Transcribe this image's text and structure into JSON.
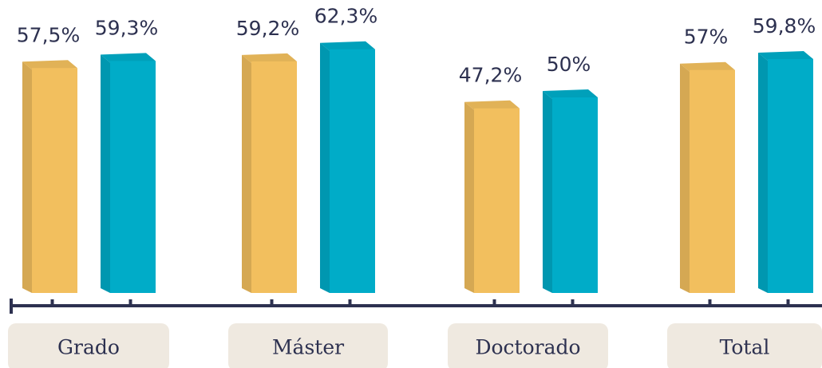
{
  "chart_data": {
    "type": "bar",
    "categories": [
      "Grado",
      "Máster",
      "Doctorado",
      "Total"
    ],
    "series": [
      {
        "color": "#f2bf5e",
        "values": [
          57.5,
          59.2,
          47.2,
          57
        ],
        "value_labels": [
          "57,5%",
          "59,2%",
          "47,2%",
          "57%"
        ]
      },
      {
        "color": "#00acc8",
        "values": [
          59.3,
          62.3,
          50,
          59.8
        ],
        "value_labels": [
          "59,3%",
          "62,3%",
          "50%",
          "59,8%"
        ]
      }
    ]
  }
}
